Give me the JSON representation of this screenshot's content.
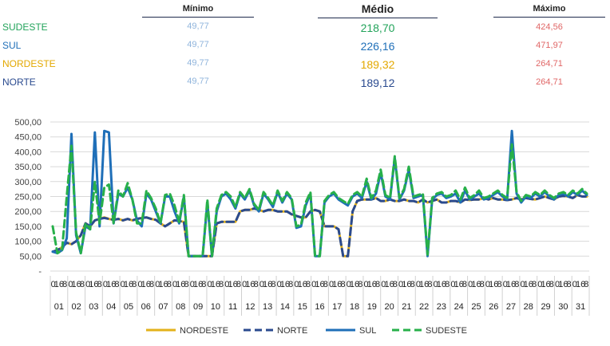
{
  "summary": {
    "headers": {
      "min": "Mínimo",
      "avg": "Médio",
      "max": "Máximo"
    },
    "rows": [
      {
        "region": "SUDESTE",
        "min": "49,77",
        "avg": "218,70",
        "max": "424,56",
        "label_color": "#22a35a",
        "avg_color": "#22a35a"
      },
      {
        "region": "SUL",
        "min": "49,77",
        "avg": "226,16",
        "max": "471,97",
        "label_color": "#1f6fb8",
        "avg_color": "#1f6fb8"
      },
      {
        "region": "NORDESTE",
        "min": "49,77",
        "avg": "189,32",
        "max": "264,71",
        "label_color": "#e3a800",
        "avg_color": "#e3a800"
      },
      {
        "region": "NORTE",
        "min": "49,77",
        "avg": "189,12",
        "max": "264,71",
        "label_color": "#2a4a8f",
        "avg_color": "#2a4a8f"
      }
    ],
    "min_color": "#8fb4dc",
    "max_color": "#e06666"
  },
  "chart_data": {
    "type": "line",
    "title": "",
    "xlabel": "",
    "ylabel": "",
    "ylim": [
      0,
      500
    ],
    "y_ticks": [
      "500,00",
      "450,00",
      "400,00",
      "350,00",
      "300,00",
      "250,00",
      "200,00",
      "150,00",
      "100,00",
      "50,00",
      "-"
    ],
    "hour_ticks": [
      "0",
      "16",
      "8"
    ],
    "days": [
      "01",
      "02",
      "03",
      "04",
      "05",
      "06",
      "07",
      "08",
      "09",
      "10",
      "11",
      "12",
      "13",
      "14",
      "15",
      "16",
      "17",
      "18",
      "19",
      "20",
      "21",
      "22",
      "23",
      "24",
      "25",
      "26",
      "27",
      "28",
      "29",
      "30",
      "31"
    ],
    "grid": true,
    "legend_position": "bottom",
    "series": [
      {
        "name": "NORDESTE",
        "color": "#e3b21a",
        "dash": "solid",
        "values": [
          65,
          70,
          80,
          95,
          90,
          100,
          120,
          160,
          150,
          170,
          175,
          180,
          175,
          172,
          175,
          170,
          175,
          170,
          175,
          178,
          180,
          175,
          172,
          160,
          150,
          160,
          170,
          168,
          165,
          50,
          50,
          50,
          50,
          50,
          50,
          160,
          165,
          165,
          165,
          165,
          200,
          205,
          205,
          210,
          205,
          200,
          205,
          205,
          200,
          200,
          200,
          190,
          185,
          180,
          180,
          200,
          205,
          200,
          150,
          150,
          150,
          140,
          50,
          50,
          200,
          235,
          240,
          240,
          240,
          245,
          235,
          235,
          240,
          235,
          235,
          240,
          235,
          235,
          230,
          240,
          230,
          235,
          240,
          230,
          230,
          235,
          235,
          230,
          240,
          238,
          240,
          240,
          245,
          240,
          245,
          240,
          240,
          238,
          240,
          245,
          240,
          245,
          242,
          240,
          245,
          250,
          245,
          240,
          250,
          252,
          250,
          245,
          255,
          250,
          250
        ]
      },
      {
        "name": "NORTE",
        "color": "#2a4a8f",
        "dash": "dash",
        "values": [
          65,
          70,
          80,
          95,
          90,
          100,
          120,
          160,
          150,
          170,
          175,
          178,
          175,
          172,
          175,
          170,
          175,
          170,
          175,
          178,
          180,
          175,
          172,
          160,
          150,
          160,
          170,
          168,
          165,
          50,
          50,
          50,
          50,
          50,
          50,
          160,
          165,
          165,
          165,
          165,
          200,
          205,
          205,
          210,
          205,
          200,
          205,
          205,
          200,
          200,
          200,
          190,
          185,
          180,
          180,
          200,
          205,
          200,
          150,
          150,
          150,
          140,
          50,
          50,
          200,
          235,
          240,
          240,
          240,
          245,
          235,
          235,
          240,
          235,
          235,
          240,
          235,
          235,
          230,
          240,
          230,
          235,
          240,
          230,
          230,
          235,
          235,
          230,
          240,
          238,
          240,
          240,
          245,
          240,
          245,
          240,
          240,
          238,
          240,
          245,
          240,
          245,
          242,
          240,
          245,
          250,
          245,
          240,
          250,
          252,
          250,
          245,
          255,
          250,
          250
        ]
      },
      {
        "name": "SUL",
        "color": "#1f6fb8",
        "dash": "solid",
        "values": [
          65,
          60,
          70,
          110,
          460,
          120,
          60,
          150,
          140,
          465,
          150,
          470,
          465,
          160,
          260,
          250,
          280,
          240,
          170,
          150,
          260,
          240,
          200,
          160,
          250,
          250,
          200,
          160,
          250,
          50,
          50,
          50,
          50,
          230,
          50,
          200,
          250,
          260,
          240,
          210,
          260,
          240,
          270,
          220,
          200,
          260,
          240,
          215,
          265,
          230,
          260,
          240,
          145,
          150,
          220,
          260,
          50,
          50,
          230,
          250,
          260,
          240,
          230,
          220,
          250,
          260,
          245,
          300,
          240,
          260,
          330,
          250,
          240,
          380,
          240,
          270,
          340,
          245,
          250,
          255,
          50,
          240,
          255,
          260,
          245,
          250,
          260,
          230,
          270,
          240,
          250,
          260,
          240,
          245,
          255,
          265,
          250,
          240,
          470,
          260,
          230,
          250,
          245,
          260,
          250,
          265,
          250,
          240,
          255,
          260,
          250,
          265,
          255,
          270,
          255
        ]
      },
      {
        "name": "SUDESTE",
        "color": "#27b04a",
        "dash": "dash",
        "values": [
          150,
          60,
          70,
          250,
          420,
          130,
          60,
          160,
          140,
          300,
          160,
          280,
          290,
          160,
          270,
          250,
          295,
          240,
          160,
          160,
          270,
          245,
          210,
          160,
          255,
          260,
          220,
          165,
          255,
          50,
          50,
          50,
          50,
          240,
          50,
          210,
          255,
          265,
          250,
          215,
          265,
          245,
          275,
          225,
          205,
          265,
          245,
          220,
          270,
          235,
          265,
          245,
          150,
          155,
          230,
          265,
          50,
          50,
          235,
          255,
          265,
          245,
          235,
          225,
          255,
          265,
          250,
          310,
          245,
          270,
          340,
          255,
          245,
          385,
          245,
          275,
          350,
          250,
          255,
          260,
          55,
          245,
          260,
          265,
          250,
          255,
          270,
          240,
          280,
          245,
          255,
          270,
          245,
          250,
          260,
          270,
          255,
          245,
          425,
          265,
          235,
          255,
          250,
          265,
          255,
          270,
          255,
          245,
          260,
          265,
          255,
          270,
          260,
          275,
          260
        ]
      }
    ]
  }
}
